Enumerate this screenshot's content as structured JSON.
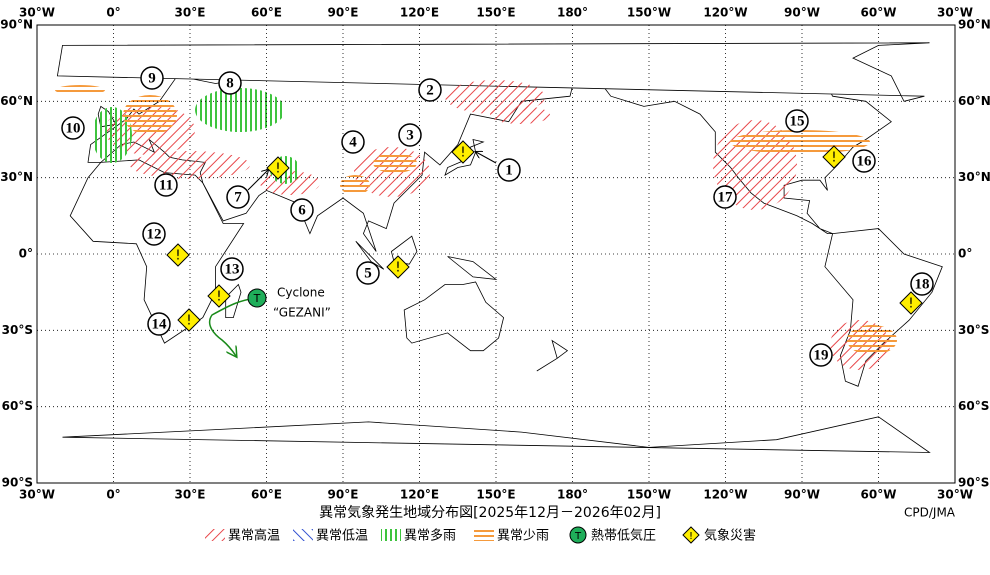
{
  "map": {
    "title": "異常気象発生地域分布図[2025年12月－2026年02月]",
    "credit": "CPD/JMA",
    "lon_labels": [
      "30°W",
      "0°",
      "30°E",
      "60°E",
      "90°E",
      "120°E",
      "150°E",
      "180°",
      "150°W",
      "120°W",
      "90°W",
      "60°W",
      "30°W"
    ],
    "lat_labels": [
      "90°N",
      "60°N",
      "30°N",
      "0°",
      "30°S",
      "60°S",
      "90°S"
    ],
    "markers": [
      "1",
      "2",
      "3",
      "4",
      "5",
      "6",
      "7",
      "8",
      "9",
      "10",
      "11",
      "12",
      "13",
      "14",
      "15",
      "16",
      "17",
      "18",
      "19"
    ],
    "disaster_symbol": "!",
    "cyclone": {
      "symbol": "T",
      "name_line1": "Cyclone",
      "name_line2": "“GEZANI”"
    },
    "legend": [
      "異常高温",
      "異常低温",
      "異常多雨",
      "異常少雨",
      "熱帯低気圧",
      "気象災害"
    ]
  }
}
